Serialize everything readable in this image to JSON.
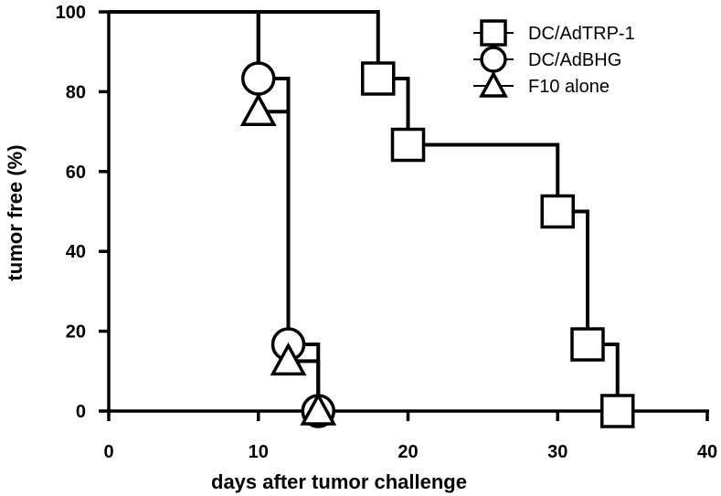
{
  "chart_data": {
    "type": "line",
    "title": "",
    "xlabel": "days after tumor challenge",
    "ylabel": "tumor free (%)",
    "xlim": [
      0,
      40
    ],
    "ylim": [
      0,
      100
    ],
    "xticks": [
      0,
      10,
      20,
      30,
      40
    ],
    "yticks": [
      0,
      20,
      40,
      60,
      80,
      100
    ],
    "grid": false,
    "legend_position": "top-right",
    "step": true,
    "series": [
      {
        "name": "DC/AdTRP-1",
        "marker": "square",
        "color": "#000000",
        "x": [
          0,
          18,
          20,
          30,
          32,
          34
        ],
        "y": [
          100,
          83.3,
          66.7,
          50,
          16.7,
          0
        ]
      },
      {
        "name": "DC/AdBHG",
        "marker": "circle",
        "color": "#000000",
        "x": [
          0,
          10,
          12,
          14
        ],
        "y": [
          100,
          83.3,
          16.7,
          0
        ]
      },
      {
        "name": "F10 alone",
        "marker": "triangle",
        "color": "#000000",
        "x": [
          0,
          10,
          12,
          14
        ],
        "y": [
          100,
          75,
          12.5,
          0
        ]
      }
    ]
  }
}
